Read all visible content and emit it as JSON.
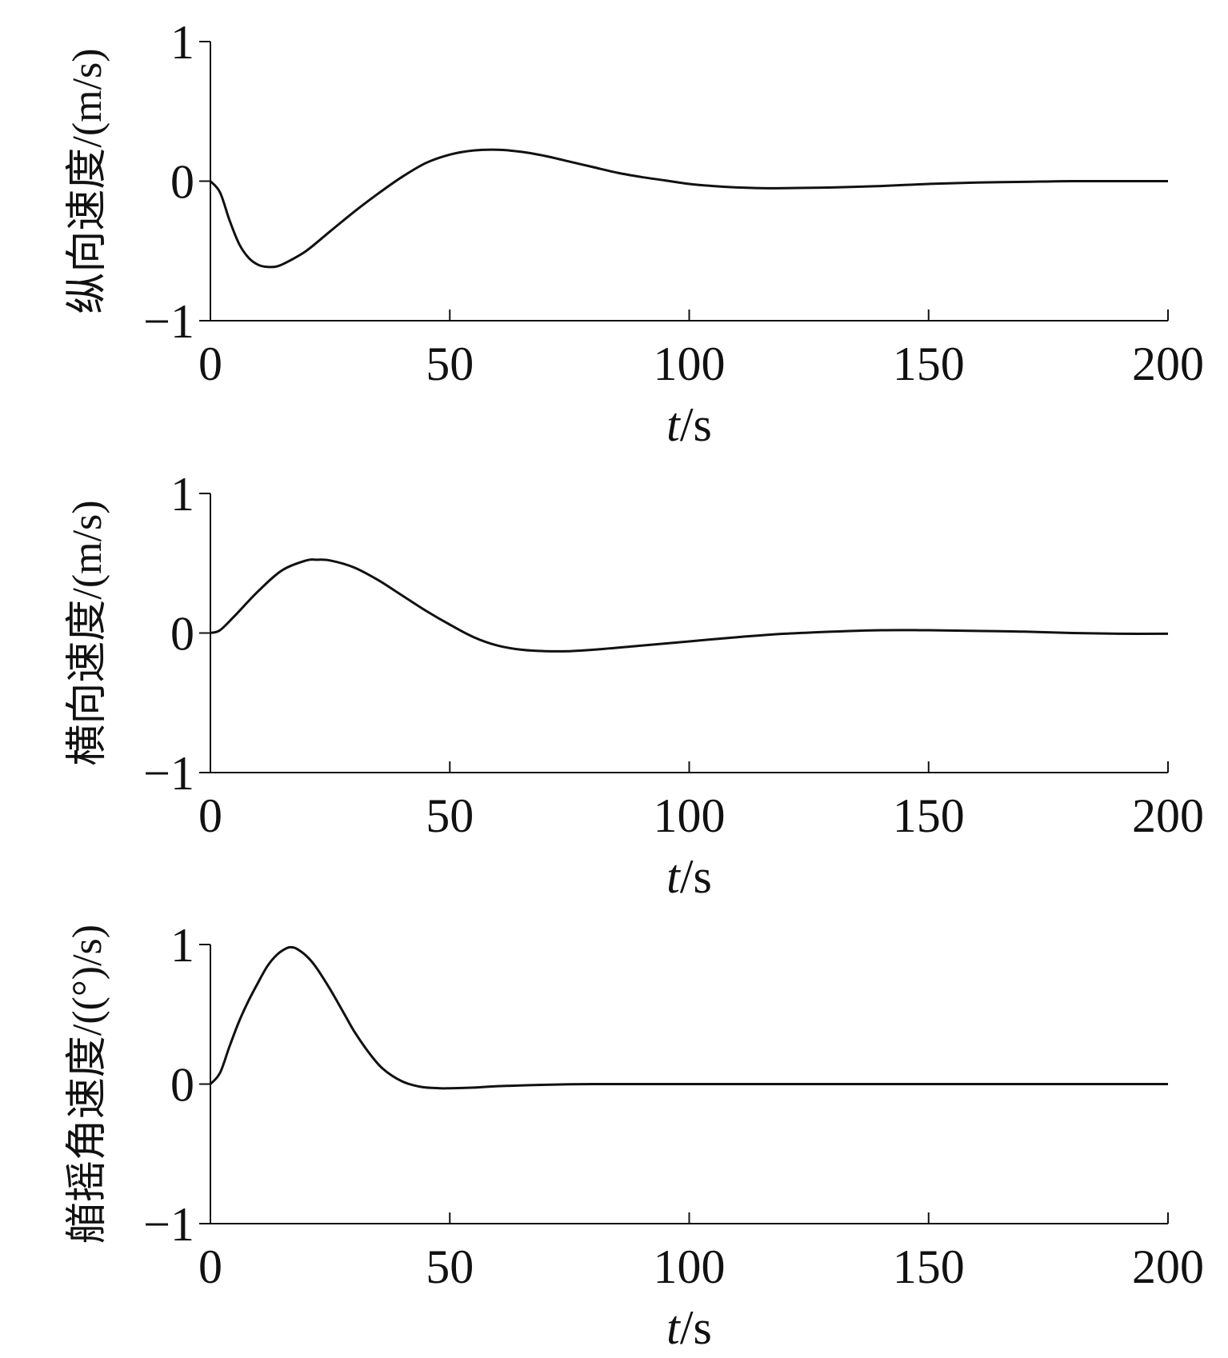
{
  "chart_data": [
    {
      "type": "line",
      "title": "",
      "xlabel": {
        "italic": "t",
        "rest": "/s"
      },
      "ylabel": "纵向速度/(m/s)",
      "xlim": [
        0,
        200
      ],
      "ylim": [
        -1,
        1
      ],
      "xticks": [
        0,
        50,
        100,
        150,
        200
      ],
      "yticks": [
        -1,
        0,
        1
      ],
      "ytick_labels": [
        "−1",
        "0",
        "1"
      ],
      "grid": false,
      "series": [
        {
          "color": "#111111",
          "x": [
            0,
            2,
            4,
            6,
            8,
            10,
            12,
            14,
            16,
            20,
            25,
            30,
            35,
            40,
            45,
            50,
            55,
            60,
            65,
            70,
            75,
            80,
            85,
            90,
            95,
            100,
            105,
            110,
            115,
            120,
            130,
            140,
            150,
            160,
            170,
            180,
            190,
            200
          ],
          "y": [
            0,
            -0.08,
            -0.28,
            -0.45,
            -0.55,
            -0.6,
            -0.615,
            -0.61,
            -0.58,
            -0.5,
            -0.36,
            -0.22,
            -0.09,
            0.03,
            0.13,
            0.19,
            0.22,
            0.225,
            0.21,
            0.18,
            0.14,
            0.1,
            0.06,
            0.03,
            0.005,
            -0.02,
            -0.035,
            -0.045,
            -0.05,
            -0.05,
            -0.045,
            -0.035,
            -0.02,
            -0.01,
            -0.005,
            0.0,
            0.0,
            0.0
          ]
        }
      ]
    },
    {
      "type": "line",
      "title": "",
      "xlabel": {
        "italic": "t",
        "rest": "/s"
      },
      "ylabel": "横向速度/(m/s)",
      "xlim": [
        0,
        200
      ],
      "ylim": [
        -1,
        1
      ],
      "xticks": [
        0,
        50,
        100,
        150,
        200
      ],
      "yticks": [
        -1,
        0,
        1
      ],
      "ytick_labels": [
        "−1",
        "0",
        "1"
      ],
      "grid": false,
      "series": [
        {
          "color": "#111111",
          "x": [
            0,
            2,
            5,
            10,
            15,
            20,
            22,
            25,
            30,
            35,
            40,
            45,
            50,
            55,
            60,
            65,
            70,
            75,
            80,
            90,
            100,
            110,
            120,
            130,
            140,
            150,
            160,
            170,
            180,
            190,
            200
          ],
          "y": [
            0,
            0.02,
            0.12,
            0.3,
            0.45,
            0.52,
            0.525,
            0.52,
            0.47,
            0.38,
            0.27,
            0.16,
            0.06,
            -0.03,
            -0.09,
            -0.12,
            -0.13,
            -0.13,
            -0.12,
            -0.09,
            -0.06,
            -0.03,
            -0.005,
            0.01,
            0.02,
            0.02,
            0.015,
            0.01,
            0.0,
            -0.005,
            -0.005
          ]
        }
      ]
    },
    {
      "type": "line",
      "title": "",
      "xlabel": {
        "italic": "t",
        "rest": "/s"
      },
      "ylabel": "艏摇角速度/((°)/s)",
      "xlim": [
        0,
        200
      ],
      "ylim": [
        -1,
        1
      ],
      "xticks": [
        0,
        50,
        100,
        150,
        200
      ],
      "yticks": [
        -1,
        0,
        1
      ],
      "ytick_labels": [
        "−1",
        "0",
        "1"
      ],
      "grid": false,
      "series": [
        {
          "color": "#111111",
          "x": [
            0,
            2,
            4,
            6,
            8,
            10,
            12,
            14,
            16,
            17,
            18,
            20,
            22,
            25,
            28,
            30,
            33,
            36,
            40,
            44,
            48,
            50,
            55,
            60,
            70,
            80,
            90,
            100,
            120,
            140,
            160,
            180,
            200
          ],
          "y": [
            0,
            0.08,
            0.27,
            0.45,
            0.6,
            0.73,
            0.85,
            0.93,
            0.975,
            0.98,
            0.97,
            0.92,
            0.84,
            0.68,
            0.5,
            0.38,
            0.23,
            0.11,
            0.02,
            -0.02,
            -0.03,
            -0.03,
            -0.025,
            -0.015,
            -0.005,
            0.0,
            0.0,
            0.0,
            0.0,
            0.0,
            0.0,
            0.0,
            0.0
          ]
        }
      ]
    }
  ]
}
